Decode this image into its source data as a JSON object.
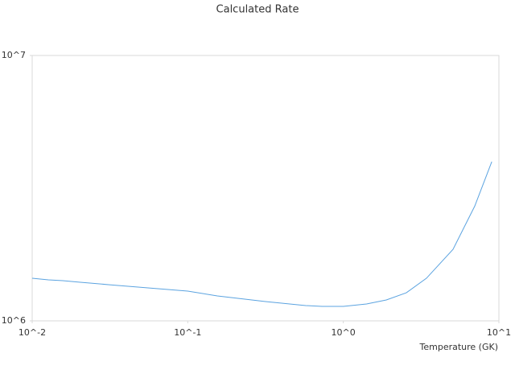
{
  "chart_data": {
    "type": "line",
    "title": "Calculated Rate",
    "x_label": "Temperature (GK)",
    "x": [
      0.01,
      0.0127,
      0.0157,
      0.0204,
      0.0314,
      0.1,
      0.155,
      0.316,
      0.574,
      0.73,
      1.0,
      1.41,
      1.89,
      2.54,
      3.42,
      5.07,
      7.0,
      9.0
    ],
    "series": [
      {
        "color": "#5ba3e0",
        "values": [
          1447000,
          1427000,
          1417000,
          1398000,
          1368000,
          1295000,
          1241000,
          1182000,
          1142000,
          1134000,
          1134000,
          1158000,
          1199000,
          1276000,
          1447000,
          1860000,
          2710000,
          3980000
        ]
      }
    ],
    "xlim": [
      0.01,
      10
    ],
    "ylim": [
      1000000,
      10000000
    ],
    "xlog": true,
    "ylog": true,
    "xticks": [
      {
        "value": 0.01,
        "label": "10^-2"
      },
      {
        "value": 0.1,
        "label": "10^-1"
      },
      {
        "value": 1,
        "label": "10^0"
      },
      {
        "value": 10,
        "label": "10^1"
      }
    ],
    "yticks": [
      {
        "value": 1000000,
        "label": "10^6"
      },
      {
        "value": 10000000,
        "label": "10^7"
      }
    ]
  }
}
